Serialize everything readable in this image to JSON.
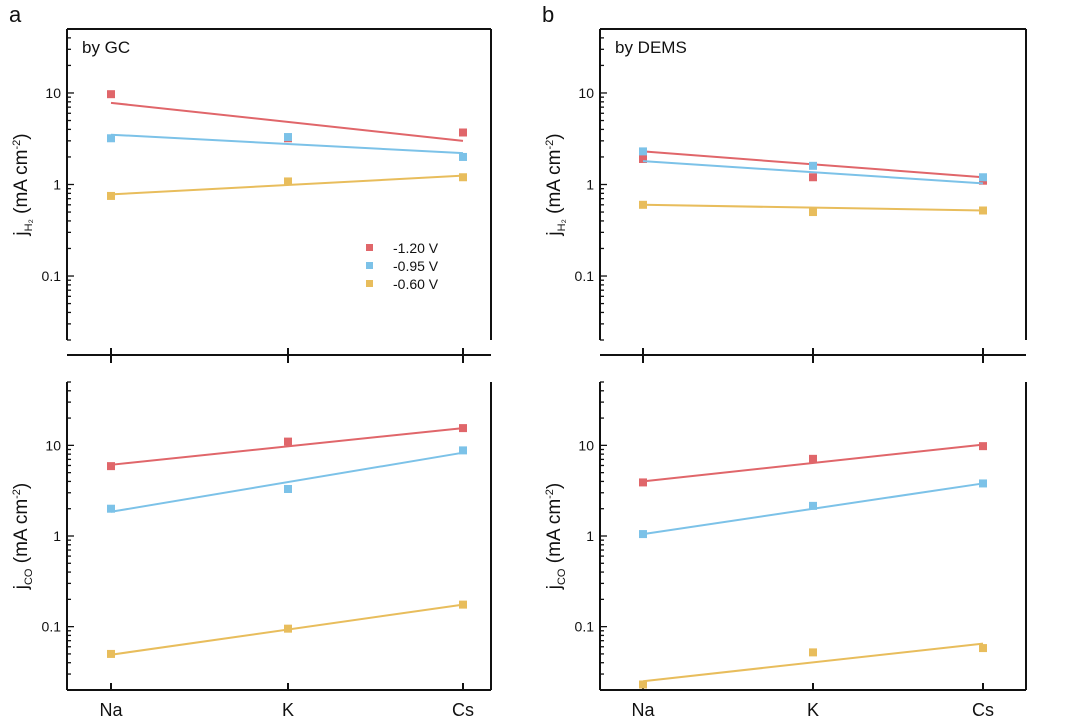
{
  "colors": {
    "red": "#e0666a",
    "blue": "#7cc2e8",
    "yellow": "#e8bd5c",
    "axis": "#111111"
  },
  "chart_data": [
    {
      "type": "scatter",
      "panel_letter": "a",
      "title": "by GC",
      "categories": [
        "Na",
        "K",
        "Cs"
      ],
      "yscale": "log",
      "ylim": [
        0.02,
        50
      ],
      "yticks": [
        "0.1",
        "1",
        "10"
      ],
      "ylabel_main": "j",
      "ylabel_sub": "H₂",
      "ylabel_unit": " (mA cm",
      "ylabel_sup": "-2",
      "ylabel_end": ")",
      "legend": {
        "placement": "center-right",
        "entries": [
          "-1.20 V",
          "-0.95 V",
          "-0.60 V"
        ]
      },
      "series": [
        {
          "name": "-1.20 V",
          "color": "red",
          "values": [
            9.7,
            3.2,
            3.7
          ],
          "fit": [
            7.8,
            3.0
          ]
        },
        {
          "name": "-0.95 V",
          "color": "blue",
          "values": [
            3.2,
            3.3,
            2.0
          ],
          "fit": [
            3.5,
            2.2
          ]
        },
        {
          "name": "-0.60 V",
          "color": "yellow",
          "values": [
            0.75,
            1.08,
            1.2
          ],
          "fit": [
            0.78,
            1.25
          ]
        }
      ]
    },
    {
      "type": "scatter",
      "panel_letter": "",
      "title": "",
      "categories": [
        "Na",
        "K",
        "Cs"
      ],
      "yscale": "log",
      "ylim": [
        0.02,
        50
      ],
      "yticks": [
        "0.1",
        "1",
        "10"
      ],
      "ylabel_main": "j",
      "ylabel_sub": "CO",
      "ylabel_unit": " (mA cm",
      "ylabel_sup": "-2",
      "ylabel_end": ")",
      "series": [
        {
          "name": "-1.20 V",
          "color": "red",
          "values": [
            5.9,
            11.0,
            15.5
          ],
          "fit": [
            6.1,
            15.5
          ]
        },
        {
          "name": "-0.95 V",
          "color": "blue",
          "values": [
            2.0,
            3.3,
            8.8
          ],
          "fit": [
            1.85,
            8.3
          ]
        },
        {
          "name": "-0.60 V",
          "color": "yellow",
          "values": [
            0.05,
            0.095,
            0.175
          ],
          "fit": [
            0.049,
            0.175
          ]
        }
      ]
    },
    {
      "type": "scatter",
      "panel_letter": "b",
      "title": "by DEMS",
      "categories": [
        "Na",
        "K",
        "Cs"
      ],
      "yscale": "log",
      "ylim": [
        0.02,
        50
      ],
      "yticks": [
        "0.1",
        "1",
        "10"
      ],
      "ylabel_main": "j",
      "ylabel_sub": "H₂",
      "ylabel_unit": " (mA cm",
      "ylabel_sup": "-2",
      "ylabel_end": ")",
      "series": [
        {
          "name": "-1.20 V",
          "color": "red",
          "values": [
            1.9,
            1.2,
            1.1
          ],
          "fit": [
            2.3,
            1.2
          ]
        },
        {
          "name": "-0.95 V",
          "color": "blue",
          "values": [
            2.3,
            1.6,
            1.2
          ],
          "fit": [
            1.8,
            1.03
          ]
        },
        {
          "name": "-0.60 V",
          "color": "yellow",
          "values": [
            0.6,
            0.5,
            0.52
          ],
          "fit": [
            0.6,
            0.52
          ]
        }
      ]
    },
    {
      "type": "scatter",
      "panel_letter": "",
      "title": "",
      "categories": [
        "Na",
        "K",
        "Cs"
      ],
      "yscale": "log",
      "ylim": [
        0.02,
        50
      ],
      "yticks": [
        "0.1",
        "1",
        "10"
      ],
      "ylabel_main": "j",
      "ylabel_sub": "CO",
      "ylabel_unit": " (mA cm",
      "ylabel_sup": "-2",
      "ylabel_end": ")",
      "series": [
        {
          "name": "-1.20 V",
          "color": "red",
          "values": [
            3.9,
            7.1,
            9.8
          ],
          "fit": [
            4.0,
            10.2
          ]
        },
        {
          "name": "-0.95 V",
          "color": "blue",
          "values": [
            1.05,
            2.15,
            3.8
          ],
          "fit": [
            1.05,
            3.8
          ]
        },
        {
          "name": "-0.60 V",
          "color": "yellow",
          "values": [
            0.023,
            0.052,
            0.058
          ],
          "fit": [
            0.025,
            0.065
          ]
        }
      ]
    }
  ]
}
